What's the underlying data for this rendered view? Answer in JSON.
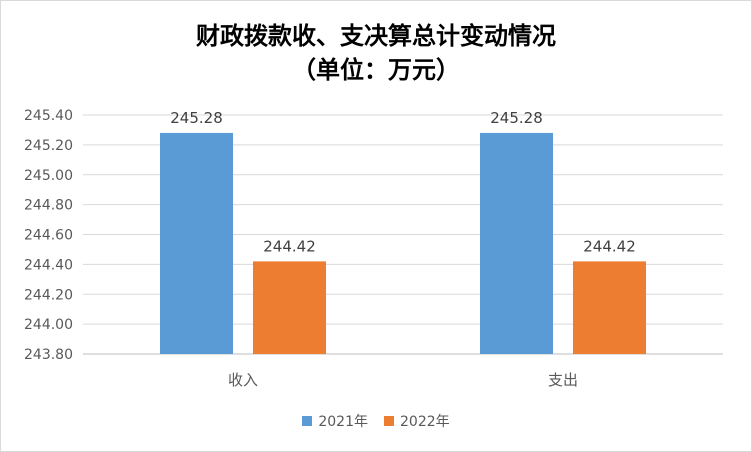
{
  "chart_data": {
    "type": "bar",
    "title": "财政拨款收、支决算总计变动情况",
    "subtitle": "（单位：万元）",
    "categories": [
      "收入",
      "支出"
    ],
    "series": [
      {
        "name": "2021年",
        "values": [
          245.28,
          245.28
        ],
        "value_labels": [
          "245.28",
          "245.28"
        ],
        "color": "#5B9BD5"
      },
      {
        "name": "2022年",
        "values": [
          244.42,
          244.42
        ],
        "value_labels": [
          "244.42",
          "244.42"
        ],
        "color": "#ED7D31"
      }
    ],
    "ylim": [
      243.8,
      245.4
    ],
    "yticks": [
      "243.80",
      "244.00",
      "244.20",
      "244.40",
      "244.60",
      "244.80",
      "245.00",
      "245.20",
      "245.40"
    ],
    "grid": true,
    "legend_position": "bottom"
  }
}
